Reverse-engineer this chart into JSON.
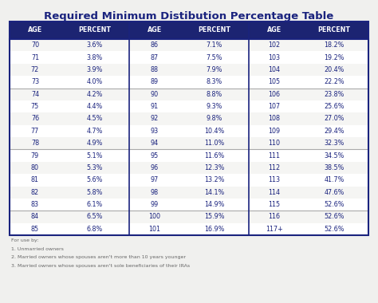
{
  "title": "Required Minimum Distibution Percentage Table",
  "title_color": "#1a237e",
  "header_bg": "#1c2472",
  "header_text_color": "#ffffff",
  "cell_text_color": "#1a237e",
  "border_color": "#1a237e",
  "divider_color": "#aaaaaa",
  "columns": [
    "AGE",
    "PERCENT",
    "AGE",
    "PERCENT",
    "AGE",
    "PERCENT"
  ],
  "rows": [
    [
      "70",
      "3.6%",
      "86",
      "7.1%",
      "102",
      "18.2%"
    ],
    [
      "71",
      "3.8%",
      "87",
      "7.5%",
      "103",
      "19.2%"
    ],
    [
      "72",
      "3.9%",
      "88",
      "7.9%",
      "104",
      "20.4%"
    ],
    [
      "73",
      "4.0%",
      "89",
      "8.3%",
      "105",
      "22.2%"
    ],
    [
      "74",
      "4.2%",
      "90",
      "8.8%",
      "106",
      "23.8%"
    ],
    [
      "75",
      "4.4%",
      "91",
      "9.3%",
      "107",
      "25.6%"
    ],
    [
      "76",
      "4.5%",
      "92",
      "9.8%",
      "108",
      "27.0%"
    ],
    [
      "77",
      "4.7%",
      "93",
      "10.4%",
      "109",
      "29.4%"
    ],
    [
      "78",
      "4.9%",
      "94",
      "11.0%",
      "110",
      "32.3%"
    ],
    [
      "79",
      "5.1%",
      "95",
      "11.6%",
      "111",
      "34.5%"
    ],
    [
      "80",
      "5.3%",
      "96",
      "12.3%",
      "112",
      "38.5%"
    ],
    [
      "81",
      "5.6%",
      "97",
      "13.2%",
      "113",
      "41.7%"
    ],
    [
      "82",
      "5.8%",
      "98",
      "14.1%",
      "114",
      "47.6%"
    ],
    [
      "83",
      "6.1%",
      "99",
      "14.9%",
      "115",
      "52.6%"
    ],
    [
      "84",
      "6.5%",
      "100",
      "15.9%",
      "116",
      "52.6%"
    ],
    [
      "85",
      "6.8%",
      "101",
      "16.9%",
      "117+",
      "52.6%"
    ]
  ],
  "divider_after_rows": [
    4,
    9,
    14
  ],
  "footer_lines": [
    "For use by:",
    "1. Unmarried owners",
    "2. Married owners whose spouses aren't more than 10 years younger",
    "3. Married owners whose spouses aren't sole beneficiaries of their IRAs"
  ],
  "footer_color": "#666666",
  "bg_color": "#f0f0ee"
}
